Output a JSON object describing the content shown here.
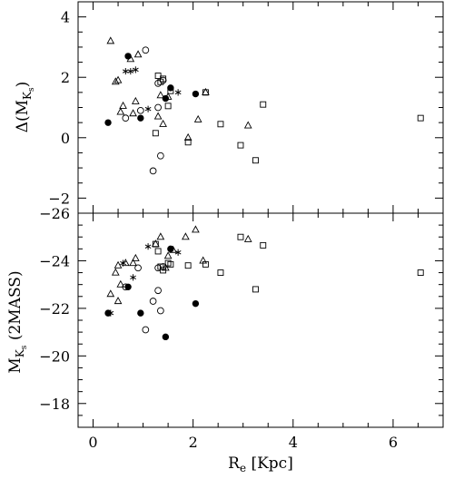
{
  "chart_data": [
    {
      "type": "scatter",
      "panel": "top",
      "ylabel": "Δ(M",
      "ylabel_sub": "K",
      "ylabel_subsub": "s",
      "ylabel_end": ")",
      "xlim": [
        -0.3,
        7.0
      ],
      "ylim": [
        -2.5,
        4.5
      ],
      "yticks": [
        -2,
        0,
        2,
        4
      ],
      "ytick_labels": [
        "−2",
        "0",
        "2",
        "4"
      ],
      "series": [
        {
          "marker": "triangle",
          "points": [
            [
              0.35,
              3.2
            ],
            [
              0.45,
              1.85
            ],
            [
              0.5,
              1.9
            ],
            [
              0.55,
              0.85
            ],
            [
              0.6,
              1.05
            ],
            [
              0.75,
              2.6
            ],
            [
              0.8,
              0.8
            ],
            [
              0.85,
              1.2
            ],
            [
              0.9,
              2.75
            ],
            [
              1.3,
              0.7
            ],
            [
              1.35,
              1.4
            ],
            [
              1.4,
              0.45
            ],
            [
              1.5,
              1.35
            ],
            [
              1.9,
              0.0
            ],
            [
              2.1,
              0.6
            ],
            [
              2.25,
              1.5
            ],
            [
              3.1,
              0.4
            ]
          ]
        },
        {
          "marker": "circle-filled",
          "points": [
            [
              0.3,
              0.5
            ],
            [
              0.7,
              2.7
            ],
            [
              0.95,
              0.65
            ],
            [
              1.45,
              1.3
            ],
            [
              1.55,
              1.65
            ],
            [
              2.05,
              1.45
            ]
          ]
        },
        {
          "marker": "circle-open",
          "points": [
            [
              0.65,
              0.65
            ],
            [
              0.95,
              0.9
            ],
            [
              1.05,
              2.9
            ],
            [
              1.2,
              -1.1
            ],
            [
              1.3,
              1.8
            ],
            [
              1.35,
              -0.6
            ],
            [
              1.3,
              1.0
            ],
            [
              1.4,
              1.9
            ]
          ]
        },
        {
          "marker": "square-open",
          "points": [
            [
              1.25,
              0.15
            ],
            [
              1.3,
              2.05
            ],
            [
              1.35,
              1.85
            ],
            [
              1.4,
              1.95
            ],
            [
              1.5,
              1.05
            ],
            [
              1.55,
              1.55
            ],
            [
              1.9,
              -0.15
            ],
            [
              2.25,
              1.5
            ],
            [
              2.55,
              0.45
            ],
            [
              2.95,
              -0.25
            ],
            [
              3.25,
              -0.75
            ],
            [
              3.4,
              1.1
            ],
            [
              6.55,
              0.65
            ]
          ]
        },
        {
          "marker": "asterisk",
          "points": [
            [
              0.65,
              2.2
            ],
            [
              0.75,
              2.2
            ],
            [
              0.85,
              2.25
            ],
            [
              1.1,
              0.95
            ],
            [
              1.7,
              1.5
            ]
          ]
        }
      ]
    },
    {
      "type": "scatter",
      "panel": "bottom",
      "xlabel": "R",
      "xlabel_sub": "e",
      "xlabel_end": " [Kpc]",
      "ylabel": "M",
      "ylabel_sub": "K",
      "ylabel_subsub": "s",
      "ylabel_end": " (2MASS)",
      "xlim": [
        -0.3,
        7.0
      ],
      "ylim": [
        -17,
        -26
      ],
      "xticks": [
        0,
        2,
        4,
        6
      ],
      "xtick_labels": [
        "0",
        "2",
        "4",
        "6"
      ],
      "yticks": [
        -18,
        -20,
        -22,
        -24,
        -26
      ],
      "ytick_labels": [
        "−18",
        "−20",
        "−22",
        "−24",
        "−26"
      ],
      "series": [
        {
          "marker": "triangle",
          "points": [
            [
              0.35,
              -22.6
            ],
            [
              0.45,
              -23.5
            ],
            [
              0.5,
              -23.8
            ],
            [
              0.5,
              -22.3
            ],
            [
              0.55,
              -23.0
            ],
            [
              0.65,
              -23.9
            ],
            [
              0.8,
              -23.9
            ],
            [
              0.85,
              -24.1
            ],
            [
              1.25,
              -24.7
            ],
            [
              1.35,
              -25.0
            ],
            [
              1.45,
              -23.7
            ],
            [
              1.5,
              -24.2
            ],
            [
              1.6,
              -24.45
            ],
            [
              1.85,
              -25.0
            ],
            [
              2.05,
              -25.3
            ],
            [
              2.2,
              -24.0
            ],
            [
              3.1,
              -24.9
            ]
          ]
        },
        {
          "marker": "circle-filled",
          "points": [
            [
              0.3,
              -21.8
            ],
            [
              0.7,
              -22.9
            ],
            [
              0.95,
              -21.8
            ],
            [
              1.45,
              -20.8
            ],
            [
              1.55,
              -24.5
            ],
            [
              2.05,
              -22.2
            ]
          ]
        },
        {
          "marker": "circle-open",
          "points": [
            [
              0.65,
              -22.9
            ],
            [
              0.9,
              -23.7
            ],
            [
              1.05,
              -21.1
            ],
            [
              1.2,
              -22.3
            ],
            [
              1.3,
              -22.75
            ],
            [
              1.35,
              -21.9
            ],
            [
              1.3,
              -23.7
            ],
            [
              1.4,
              -23.75
            ]
          ]
        },
        {
          "marker": "square-open",
          "points": [
            [
              1.25,
              -24.7
            ],
            [
              1.3,
              -24.4
            ],
            [
              1.35,
              -23.75
            ],
            [
              1.4,
              -23.6
            ],
            [
              1.5,
              -23.9
            ],
            [
              1.55,
              -23.85
            ],
            [
              1.9,
              -23.8
            ],
            [
              2.25,
              -23.85
            ],
            [
              2.55,
              -23.5
            ],
            [
              2.95,
              -25.0
            ],
            [
              3.25,
              -22.8
            ],
            [
              3.4,
              -24.65
            ],
            [
              6.55,
              -23.5
            ]
          ]
        },
        {
          "marker": "asterisk",
          "points": [
            [
              0.35,
              -21.8
            ],
            [
              0.6,
              -23.9
            ],
            [
              0.8,
              -23.3
            ],
            [
              1.1,
              -24.6
            ],
            [
              1.7,
              -24.35
            ]
          ]
        }
      ]
    }
  ]
}
